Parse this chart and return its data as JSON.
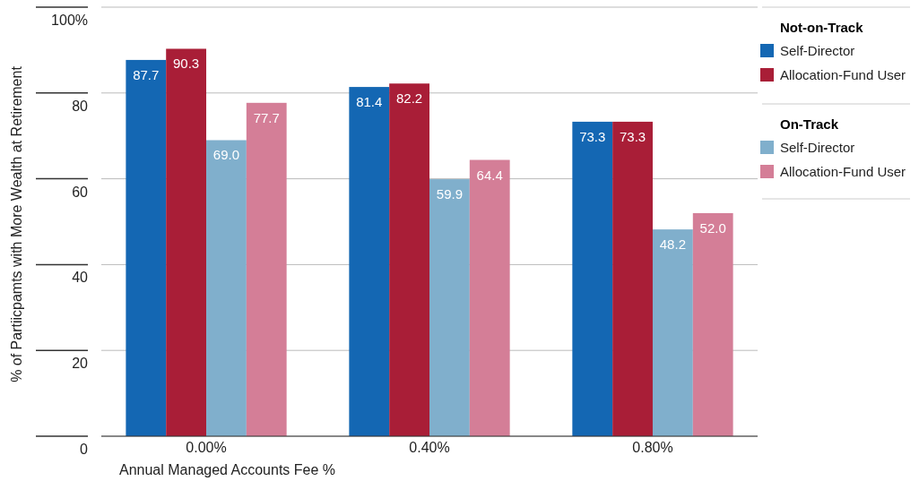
{
  "chart_data": {
    "type": "bar",
    "xlabel": "Annual Managed Accounts Fee %",
    "ylabel": "% of Partiicpamts with More Wealth at Retirement",
    "categories": [
      "0.00%",
      "0.40%",
      "0.80%"
    ],
    "series": [
      {
        "name": "Self-Director",
        "color": "#1467b3",
        "values": [
          87.7,
          81.4,
          73.3
        ],
        "value_labels": [
          "87.7",
          "81.4",
          "73.3"
        ]
      },
      {
        "name": "Allocation-Fund User",
        "color": "#a91e37",
        "values": [
          90.3,
          82.2,
          73.3
        ],
        "value_labels": [
          "90.3",
          "82.2",
          "73.3"
        ]
      },
      {
        "name": "Self-Director",
        "color": "#80afcc",
        "values": [
          69,
          59.9,
          48.2
        ],
        "value_labels": [
          "69.0",
          "59.9",
          "48.2"
        ]
      },
      {
        "name": "Allocation-Fund User",
        "color": "#d47e97",
        "values": [
          77.7,
          64.4,
          52
        ],
        "value_labels": [
          "77.7",
          "64.4",
          "52.0"
        ]
      }
    ],
    "ylim": [
      0,
      100
    ],
    "yticks": [
      0,
      20,
      40,
      60,
      80,
      {
        "value": 100,
        "label": "100%"
      }
    ],
    "grid": "y",
    "legend": "top right",
    "annotations": [
      "Not-on-Track",
      "On-Track"
    ]
  }
}
